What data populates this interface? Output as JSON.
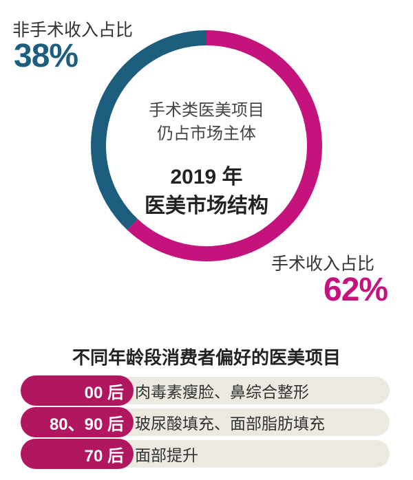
{
  "chart_data": {
    "type": "pie",
    "title": "2019 年",
    "subtitle": "医美市场结构",
    "center_caption": [
      "手术类医美项目",
      "仍占市场主体"
    ],
    "slices": [
      {
        "name": "非手术收入占比",
        "value": 38,
        "label": "38%",
        "color": "#1d5e7e"
      },
      {
        "name": "手术收入占比",
        "value": 62,
        "label": "62%",
        "color": "#c5137e"
      }
    ]
  },
  "table": {
    "title": "不同年龄段消费者偏好的医美项目",
    "rows": [
      {
        "group": "00 后",
        "items": "肉毒素瘦脸、鼻综合整形"
      },
      {
        "group": "80、90 后",
        "items": "玻尿酸填充、面部脂肪填充"
      },
      {
        "group": "70 后",
        "items": "面部提升"
      }
    ]
  }
}
